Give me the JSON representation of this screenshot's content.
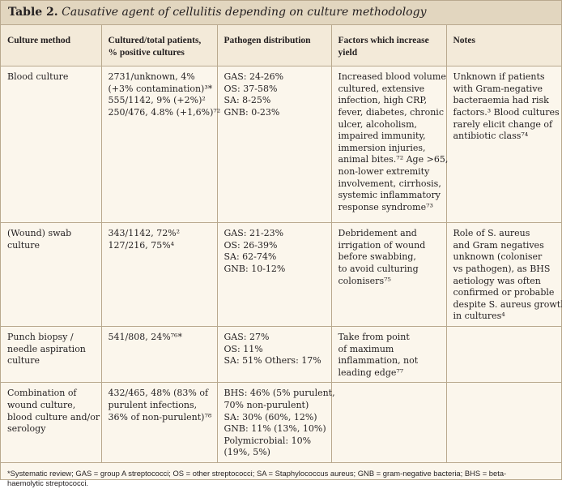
{
  "table": {
    "label": "Table 2.",
    "title": "Causative agent of cellulitis depending on culture methodology",
    "headers": [
      [
        "Culture method"
      ],
      [
        "Cultured/total patients,",
        "% positive cultures"
      ],
      [
        "Pathogen distribution"
      ],
      [
        "Factors which increase",
        "yield"
      ],
      [
        "Notes"
      ]
    ],
    "rows": [
      {
        "method": [
          "Blood culture"
        ],
        "cultured": [
          "2731/unknown, 4%",
          "(+3% contamination)³*",
          "555/1142, 9% (+2%)²",
          "250/476, 4.8% (+1,6%)⁷²"
        ],
        "pathogen": [
          "GAS: 24-26%",
          "OS: 37-58%",
          "SA: 8-25%",
          "GNB: 0-23%"
        ],
        "factors": [
          "Increased blood volume",
          "cultured, extensive",
          "infection, high CRP,",
          "fever, diabetes, chronic",
          "ulcer, alcoholism,",
          "impaired immunity,",
          "immersion injuries,",
          "animal bites.⁷² Age >65,",
          "non-lower extremity",
          "involvement, cirrhosis,",
          "systemic inflammatory",
          "response syndrome⁷³"
        ],
        "notes": [
          "Unknown if patients",
          "with Gram-negative",
          "bacteraemia had risk",
          "factors.³ Blood cultures",
          "rarely elicit change of",
          "antibiotic class⁷⁴"
        ]
      },
      {
        "method": [
          "(Wound) swab",
          "culture"
        ],
        "cultured": [
          "343/1142, 72%²",
          "127/216, 75%⁴"
        ],
        "pathogen": [
          "GAS: 21-23%",
          "OS: 26-39%",
          "SA: 62-74%",
          "GNB: 10-12%"
        ],
        "factors": [
          "Debridement and",
          "irrigation of wound",
          "before swabbing,",
          "to avoid culturing",
          "colonisers⁷⁵"
        ],
        "notes": [
          "Role of S. aureus",
          "and Gram negatives",
          "unknown (coloniser",
          "vs pathogen), as BHS",
          "aetiology was often",
          "confirmed or probable",
          "despite S. aureus growth",
          "in cultures⁴"
        ]
      },
      {
        "method": [
          "Punch biopsy /",
          "needle aspiration",
          "culture"
        ],
        "cultured": [
          "541/808, 24%⁷⁶*"
        ],
        "pathogen": [
          "GAS: 27%",
          "OS: 11%",
          "SA: 51% Others: 17%"
        ],
        "factors": [
          "Take from point",
          "of maximum",
          "inflammation, not",
          "leading edge⁷⁷"
        ],
        "notes": []
      },
      {
        "method": [
          "Combination of",
          "wound culture,",
          "blood culture and/or",
          "serology"
        ],
        "cultured": [
          "432/465, 48% (83% of",
          "purulent infections,",
          "36% of non-purulent)⁷⁸"
        ],
        "pathogen": [
          "BHS: 46% (5% purulent,",
          "70% non-purulent)",
          "SA: 30% (60%, 12%)",
          "GNB: 11% (13%, 10%)",
          "Polymicrobial: 10%",
          "(19%, 5%)"
        ],
        "factors": [],
        "notes": []
      }
    ],
    "footnote": [
      "*Systematic review; GAS = group A streptococci; OS = other streptococci; SA = Staphylococcus aureus; GNB = gram-negative bacteria; BHS = beta-",
      "haemolytic streptococci."
    ]
  },
  "colors": {
    "header_bg": "#e2d6bf",
    "border": "#b9a98e",
    "body_bg": "#fbf6ec"
  }
}
